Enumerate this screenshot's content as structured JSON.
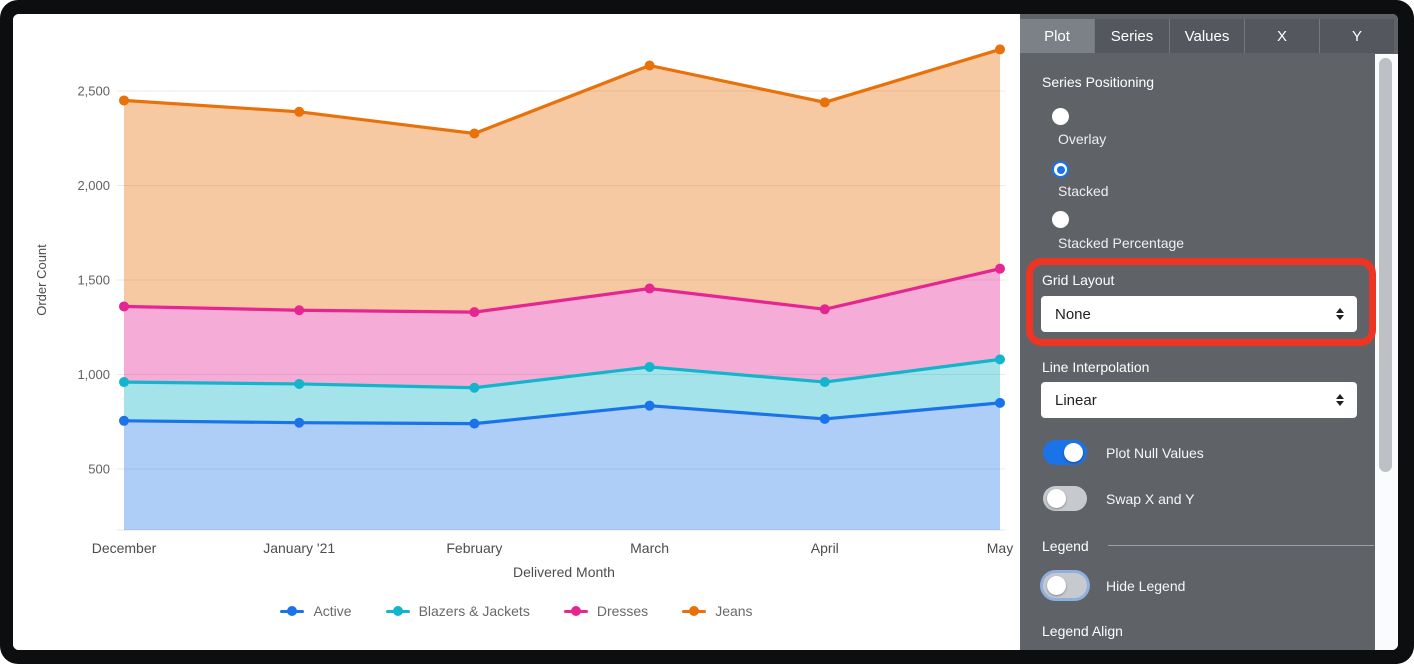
{
  "chart_data": {
    "type": "area",
    "stacking": "stacked",
    "xlabel": "Delivered Month",
    "ylabel": "Order Count",
    "categories": [
      "December",
      "January '21",
      "February",
      "March",
      "April",
      "May"
    ],
    "series": [
      {
        "name": "Active",
        "color": "#1a73e8",
        "fill": "rgba(26,115,232,0.35)",
        "values": [
          755,
          745,
          740,
          835,
          765,
          850
        ]
      },
      {
        "name": "Blazers & Jackets",
        "color": "#12b5cb",
        "fill": "rgba(18,181,203,0.38)",
        "values": [
          205,
          205,
          190,
          205,
          195,
          230
        ]
      },
      {
        "name": "Dresses",
        "color": "#e52592",
        "fill": "rgba(229,37,146,0.38)",
        "values": [
          400,
          390,
          400,
          415,
          385,
          480
        ]
      },
      {
        "name": "Jeans",
        "color": "#e8710a",
        "fill": "rgba(232,113,10,0.38)",
        "values": [
          1090,
          1050,
          945,
          1180,
          1095,
          1160
        ]
      }
    ],
    "stacked_totals": [
      2450,
      2390,
      2275,
      2635,
      2440,
      2720
    ],
    "y_ticks": [
      500,
      1000,
      1500,
      2000,
      2500
    ],
    "y_tick_labels": [
      "500",
      "1,000",
      "1,500",
      "2,000",
      "2,500"
    ],
    "ylim": [
      178,
      2905
    ],
    "grid": true,
    "legend_position": "bottom"
  },
  "panel": {
    "tabs": [
      {
        "label": "Plot",
        "selected": true
      },
      {
        "label": "Series",
        "selected": false
      },
      {
        "label": "Values",
        "selected": false
      },
      {
        "label": "X",
        "selected": false
      },
      {
        "label": "Y",
        "selected": false
      }
    ],
    "series_positioning": {
      "label": "Series Positioning",
      "options": [
        {
          "label": "Overlay",
          "selected": false
        },
        {
          "label": "Stacked",
          "selected": true
        },
        {
          "label": "Stacked Percentage",
          "selected": false
        }
      ]
    },
    "grid_layout": {
      "label": "Grid Layout",
      "value": "None"
    },
    "line_interpolation": {
      "label": "Line Interpolation",
      "value": "Linear"
    },
    "plot_null_values": {
      "label": "Plot Null Values",
      "on": true
    },
    "swap_x_y": {
      "label": "Swap X and Y",
      "on": false
    },
    "legend_section": {
      "label": "Legend",
      "hide_legend": {
        "label": "Hide Legend",
        "on": false
      },
      "legend_align_label": "Legend Align"
    },
    "annotation": {
      "type": "highlight-box",
      "target": "Grid Layout",
      "color": "#ee3524"
    }
  }
}
